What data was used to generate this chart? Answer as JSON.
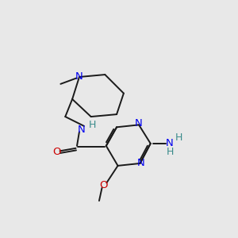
{
  "bg_color": "#e8e8e8",
  "bond_color": "#1a1a1a",
  "N_color": "#0000ee",
  "O_color": "#cc0000",
  "H_color": "#3a8b8b",
  "figsize": [
    3.0,
    3.0
  ],
  "dpi": 100,
  "lw": 1.4,
  "fs": 9.5,
  "xlim": [
    0,
    10
  ],
  "ylim": [
    0,
    10
  ]
}
